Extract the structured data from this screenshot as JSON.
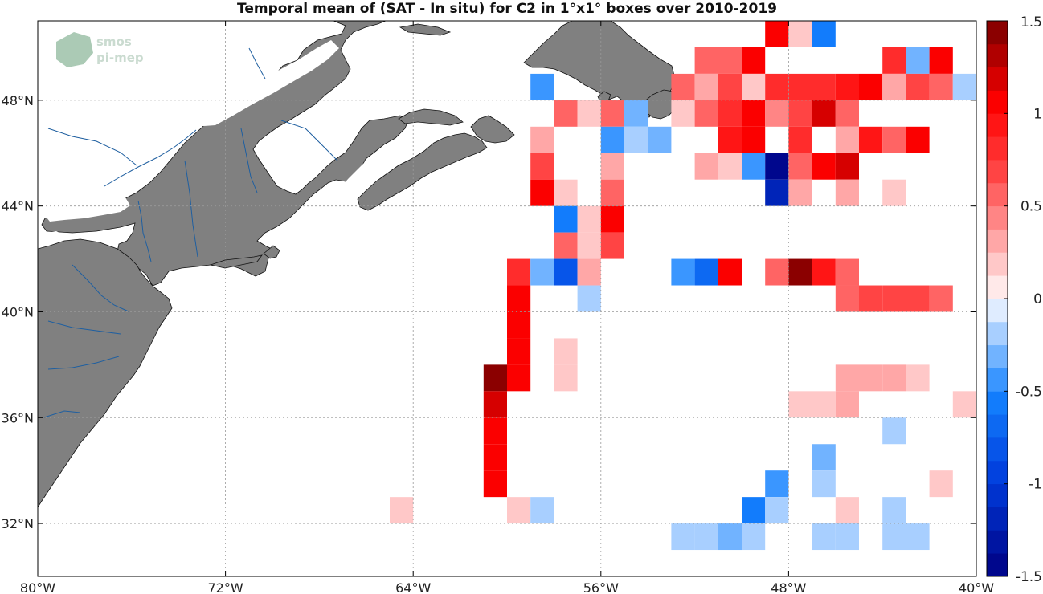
{
  "title": "Temporal mean of (SAT - In situ) for C2 in 1°x1° boxes over 2010-2019",
  "logo": {
    "line1": "smos",
    "line2": "pi-mep"
  },
  "map": {
    "lon_range": [
      -80,
      -40
    ],
    "lat_range": [
      30,
      51
    ],
    "land_color": "#808080",
    "river_color": "#1f5fa0",
    "lon_ticks": [
      {
        "value": -80,
        "label": "80°W"
      },
      {
        "value": -72,
        "label": "72°W"
      },
      {
        "value": -64,
        "label": "64°W"
      },
      {
        "value": -56,
        "label": "56°W"
      },
      {
        "value": -48,
        "label": "48°W"
      },
      {
        "value": -40,
        "label": "40°W"
      }
    ],
    "lat_ticks": [
      {
        "value": 48,
        "label": "48°N"
      },
      {
        "value": 44,
        "label": "44°N"
      },
      {
        "value": 40,
        "label": "40°N"
      },
      {
        "value": 36,
        "label": "36°N"
      },
      {
        "value": 32,
        "label": "32°N"
      }
    ]
  },
  "colorbar": {
    "range": [
      -1.5,
      1.5
    ],
    "levels": 24,
    "labels": [
      {
        "value": 1.5,
        "label": "1.5"
      },
      {
        "value": 1,
        "label": "1"
      },
      {
        "value": 0.5,
        "label": "0.5"
      },
      {
        "value": 0,
        "label": "0"
      },
      {
        "value": -0.5,
        "label": "-0.5"
      },
      {
        "value": -1,
        "label": "-1"
      },
      {
        "value": -1.5,
        "label": "-1.5"
      }
    ]
  },
  "chart_data": {
    "type": "heatmap",
    "cell_size_deg": 1,
    "value_range": [
      -1.5,
      1.5
    ],
    "cells": [
      {
        "lon": -49,
        "lat": 50,
        "v": 1.0
      },
      {
        "lon": -48,
        "lat": 50,
        "v": 0.2
      },
      {
        "lon": -47,
        "lat": 50,
        "v": -0.55
      },
      {
        "lon": -52,
        "lat": 49,
        "v": 0.5
      },
      {
        "lon": -51,
        "lat": 49,
        "v": 0.6
      },
      {
        "lon": -50,
        "lat": 49,
        "v": 1.0
      },
      {
        "lon": -44,
        "lat": 49,
        "v": 0.8
      },
      {
        "lon": -43,
        "lat": 49,
        "v": -0.3
      },
      {
        "lon": -42,
        "lat": 49,
        "v": 1.0
      },
      {
        "lon": -59,
        "lat": 48,
        "v": -0.5
      },
      {
        "lon": -53,
        "lat": 48,
        "v": 0.6
      },
      {
        "lon": -52,
        "lat": 48,
        "v": 0.25
      },
      {
        "lon": -51,
        "lat": 48,
        "v": 0.7
      },
      {
        "lon": -50,
        "lat": 48,
        "v": 0.2
      },
      {
        "lon": -49,
        "lat": 48,
        "v": 0.75
      },
      {
        "lon": -48,
        "lat": 48,
        "v": 0.75
      },
      {
        "lon": -47,
        "lat": 48,
        "v": 0.75
      },
      {
        "lon": -46,
        "lat": 48,
        "v": 0.9
      },
      {
        "lon": -45,
        "lat": 48,
        "v": 1.0
      },
      {
        "lon": -44,
        "lat": 48,
        "v": 0.3
      },
      {
        "lon": -43,
        "lat": 48,
        "v": 0.7
      },
      {
        "lon": -42,
        "lat": 48,
        "v": 0.5
      },
      {
        "lon": -41,
        "lat": 48,
        "v": -0.15
      },
      {
        "lon": -58,
        "lat": 47,
        "v": 0.6
      },
      {
        "lon": -57,
        "lat": 47,
        "v": 0.2
      },
      {
        "lon": -56,
        "lat": 47,
        "v": 0.6
      },
      {
        "lon": -55,
        "lat": 47,
        "v": -0.3
      },
      {
        "lon": -53,
        "lat": 47,
        "v": 0.2
      },
      {
        "lon": -52,
        "lat": 47,
        "v": 0.55
      },
      {
        "lon": -51,
        "lat": 47,
        "v": 0.75
      },
      {
        "lon": -50,
        "lat": 47,
        "v": 1.0
      },
      {
        "lon": -49,
        "lat": 47,
        "v": 0.45
      },
      {
        "lon": -48,
        "lat": 47,
        "v": 0.7
      },
      {
        "lon": -47,
        "lat": 47,
        "v": 1.2
      },
      {
        "lon": -46,
        "lat": 47,
        "v": 0.5
      },
      {
        "lon": -59,
        "lat": 46,
        "v": 0.3
      },
      {
        "lon": -56,
        "lat": 46,
        "v": -0.45
      },
      {
        "lon": -55,
        "lat": 46,
        "v": -0.15
      },
      {
        "lon": -54,
        "lat": 46,
        "v": -0.35
      },
      {
        "lon": -51,
        "lat": 46,
        "v": 0.9
      },
      {
        "lon": -50,
        "lat": 46,
        "v": 1.0
      },
      {
        "lon": -48,
        "lat": 46,
        "v": 0.75
      },
      {
        "lon": -46,
        "lat": 46,
        "v": 0.3
      },
      {
        "lon": -45,
        "lat": 46,
        "v": 0.9
      },
      {
        "lon": -44,
        "lat": 46,
        "v": 0.55
      },
      {
        "lon": -43,
        "lat": 46,
        "v": 1.0
      },
      {
        "lon": -59,
        "lat": 45,
        "v": 0.7
      },
      {
        "lon": -56,
        "lat": 45,
        "v": 0.3
      },
      {
        "lon": -52,
        "lat": 45,
        "v": 0.3
      },
      {
        "lon": -51,
        "lat": 45,
        "v": 0.2
      },
      {
        "lon": -50,
        "lat": 45,
        "v": -0.4
      },
      {
        "lon": -49,
        "lat": 45,
        "v": -1.4
      },
      {
        "lon": -48,
        "lat": 45,
        "v": 0.6
      },
      {
        "lon": -47,
        "lat": 45,
        "v": 1.0
      },
      {
        "lon": -46,
        "lat": 45,
        "v": 1.2
      },
      {
        "lon": -59,
        "lat": 44,
        "v": 1.0
      },
      {
        "lon": -58,
        "lat": 44,
        "v": 0.2
      },
      {
        "lon": -56,
        "lat": 44,
        "v": 0.5
      },
      {
        "lon": -49,
        "lat": 44,
        "v": -1.2
      },
      {
        "lon": -48,
        "lat": 44,
        "v": 0.3
      },
      {
        "lon": -46,
        "lat": 44,
        "v": 0.3
      },
      {
        "lon": -44,
        "lat": 44,
        "v": 0.15
      },
      {
        "lon": -58,
        "lat": 43,
        "v": -0.6
      },
      {
        "lon": -57,
        "lat": 43,
        "v": 0.2
      },
      {
        "lon": -56,
        "lat": 43,
        "v": 1.1
      },
      {
        "lon": -58,
        "lat": 42,
        "v": 0.5
      },
      {
        "lon": -57,
        "lat": 42,
        "v": 0.2
      },
      {
        "lon": -56,
        "lat": 42,
        "v": 0.65
      },
      {
        "lon": -60,
        "lat": 41,
        "v": 0.8
      },
      {
        "lon": -59,
        "lat": 41,
        "v": -0.3
      },
      {
        "lon": -58,
        "lat": 41,
        "v": -0.8
      },
      {
        "lon": -57,
        "lat": 41,
        "v": 0.3
      },
      {
        "lon": -53,
        "lat": 41,
        "v": -0.5
      },
      {
        "lon": -52,
        "lat": 41,
        "v": -0.75
      },
      {
        "lon": -51,
        "lat": 41,
        "v": 1.0
      },
      {
        "lon": -49,
        "lat": 41,
        "v": 0.55
      },
      {
        "lon": -48,
        "lat": 41,
        "v": 1.45
      },
      {
        "lon": -47,
        "lat": 41,
        "v": 0.9
      },
      {
        "lon": -46,
        "lat": 41,
        "v": 0.5
      },
      {
        "lon": -60,
        "lat": 40,
        "v": 1.0
      },
      {
        "lon": -57,
        "lat": 40,
        "v": -0.15
      },
      {
        "lon": -46,
        "lat": 40,
        "v": 0.6
      },
      {
        "lon": -45,
        "lat": 40,
        "v": 0.7
      },
      {
        "lon": -44,
        "lat": 40,
        "v": 0.7
      },
      {
        "lon": -43,
        "lat": 40,
        "v": 0.7
      },
      {
        "lon": -42,
        "lat": 40,
        "v": 0.6
      },
      {
        "lon": -60,
        "lat": 39,
        "v": 1.0
      },
      {
        "lon": -60,
        "lat": 38,
        "v": 1.1
      },
      {
        "lon": -58,
        "lat": 38,
        "v": 0.15
      },
      {
        "lon": -61,
        "lat": 37,
        "v": 1.4
      },
      {
        "lon": -60,
        "lat": 37,
        "v": 1.1
      },
      {
        "lon": -58,
        "lat": 37,
        "v": 0.15
      },
      {
        "lon": -46,
        "lat": 37,
        "v": 0.3
      },
      {
        "lon": -45,
        "lat": 37,
        "v": 0.3
      },
      {
        "lon": -44,
        "lat": 37,
        "v": 0.3
      },
      {
        "lon": -43,
        "lat": 37,
        "v": 0.15
      },
      {
        "lon": -61,
        "lat": 36,
        "v": 1.2
      },
      {
        "lon": -48,
        "lat": 36,
        "v": 0.15
      },
      {
        "lon": -47,
        "lat": 36,
        "v": 0.15
      },
      {
        "lon": -46,
        "lat": 36,
        "v": 0.3
      },
      {
        "lon": -41,
        "lat": 36,
        "v": 0.2
      },
      {
        "lon": -61,
        "lat": 35,
        "v": 1.1
      },
      {
        "lon": -44,
        "lat": 35,
        "v": -0.15
      },
      {
        "lon": -61,
        "lat": 34,
        "v": 1.0
      },
      {
        "lon": -47,
        "lat": 34,
        "v": -0.3
      },
      {
        "lon": -61,
        "lat": 33,
        "v": 1.1
      },
      {
        "lon": -49,
        "lat": 33,
        "v": -0.45
      },
      {
        "lon": -47,
        "lat": 33,
        "v": -0.15
      },
      {
        "lon": -42,
        "lat": 33,
        "v": 0.2
      },
      {
        "lon": -65,
        "lat": 32,
        "v": 0.2
      },
      {
        "lon": -60,
        "lat": 32,
        "v": 0.2
      },
      {
        "lon": -59,
        "lat": 32,
        "v": -0.15
      },
      {
        "lon": -50,
        "lat": 32,
        "v": -0.6
      },
      {
        "lon": -49,
        "lat": 32,
        "v": -0.25
      },
      {
        "lon": -46,
        "lat": 32,
        "v": 0.15
      },
      {
        "lon": -44,
        "lat": 32,
        "v": -0.15
      },
      {
        "lon": -53,
        "lat": 31,
        "v": -0.15
      },
      {
        "lon": -52,
        "lat": 31,
        "v": -0.15
      },
      {
        "lon": -51,
        "lat": 31,
        "v": -0.3
      },
      {
        "lon": -50,
        "lat": 31,
        "v": -0.25
      },
      {
        "lon": -47,
        "lat": 31,
        "v": -0.15
      },
      {
        "lon": -46,
        "lat": 31,
        "v": -0.15
      },
      {
        "lon": -44,
        "lat": 31,
        "v": -0.15
      },
      {
        "lon": -43,
        "lat": 31,
        "v": -0.15
      }
    ]
  }
}
